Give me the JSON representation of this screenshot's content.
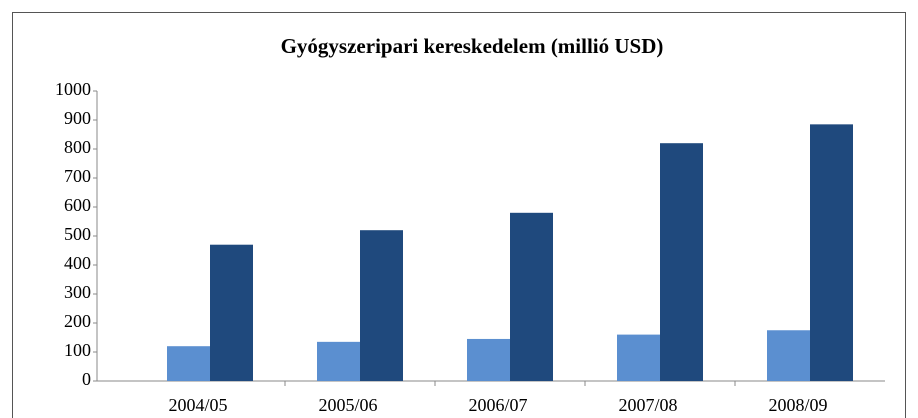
{
  "chart_data": {
    "type": "bar",
    "title": "Gyógyszeripari kereskedelem (millió USD)",
    "categories": [
      "2004/05",
      "2005/06",
      "2006/07",
      "2007/08",
      "2008/09"
    ],
    "series": [
      {
        "color": "#5b8fd0",
        "values": [
          120,
          135,
          145,
          160,
          175
        ]
      },
      {
        "color": "#1f497d",
        "values": [
          470,
          520,
          580,
          820,
          885
        ]
      }
    ],
    "ylim": [
      0,
      1000
    ],
    "yticks": [
      0,
      100,
      200,
      300,
      400,
      500,
      600,
      700,
      800,
      900,
      1000
    ],
    "grid": false
  }
}
